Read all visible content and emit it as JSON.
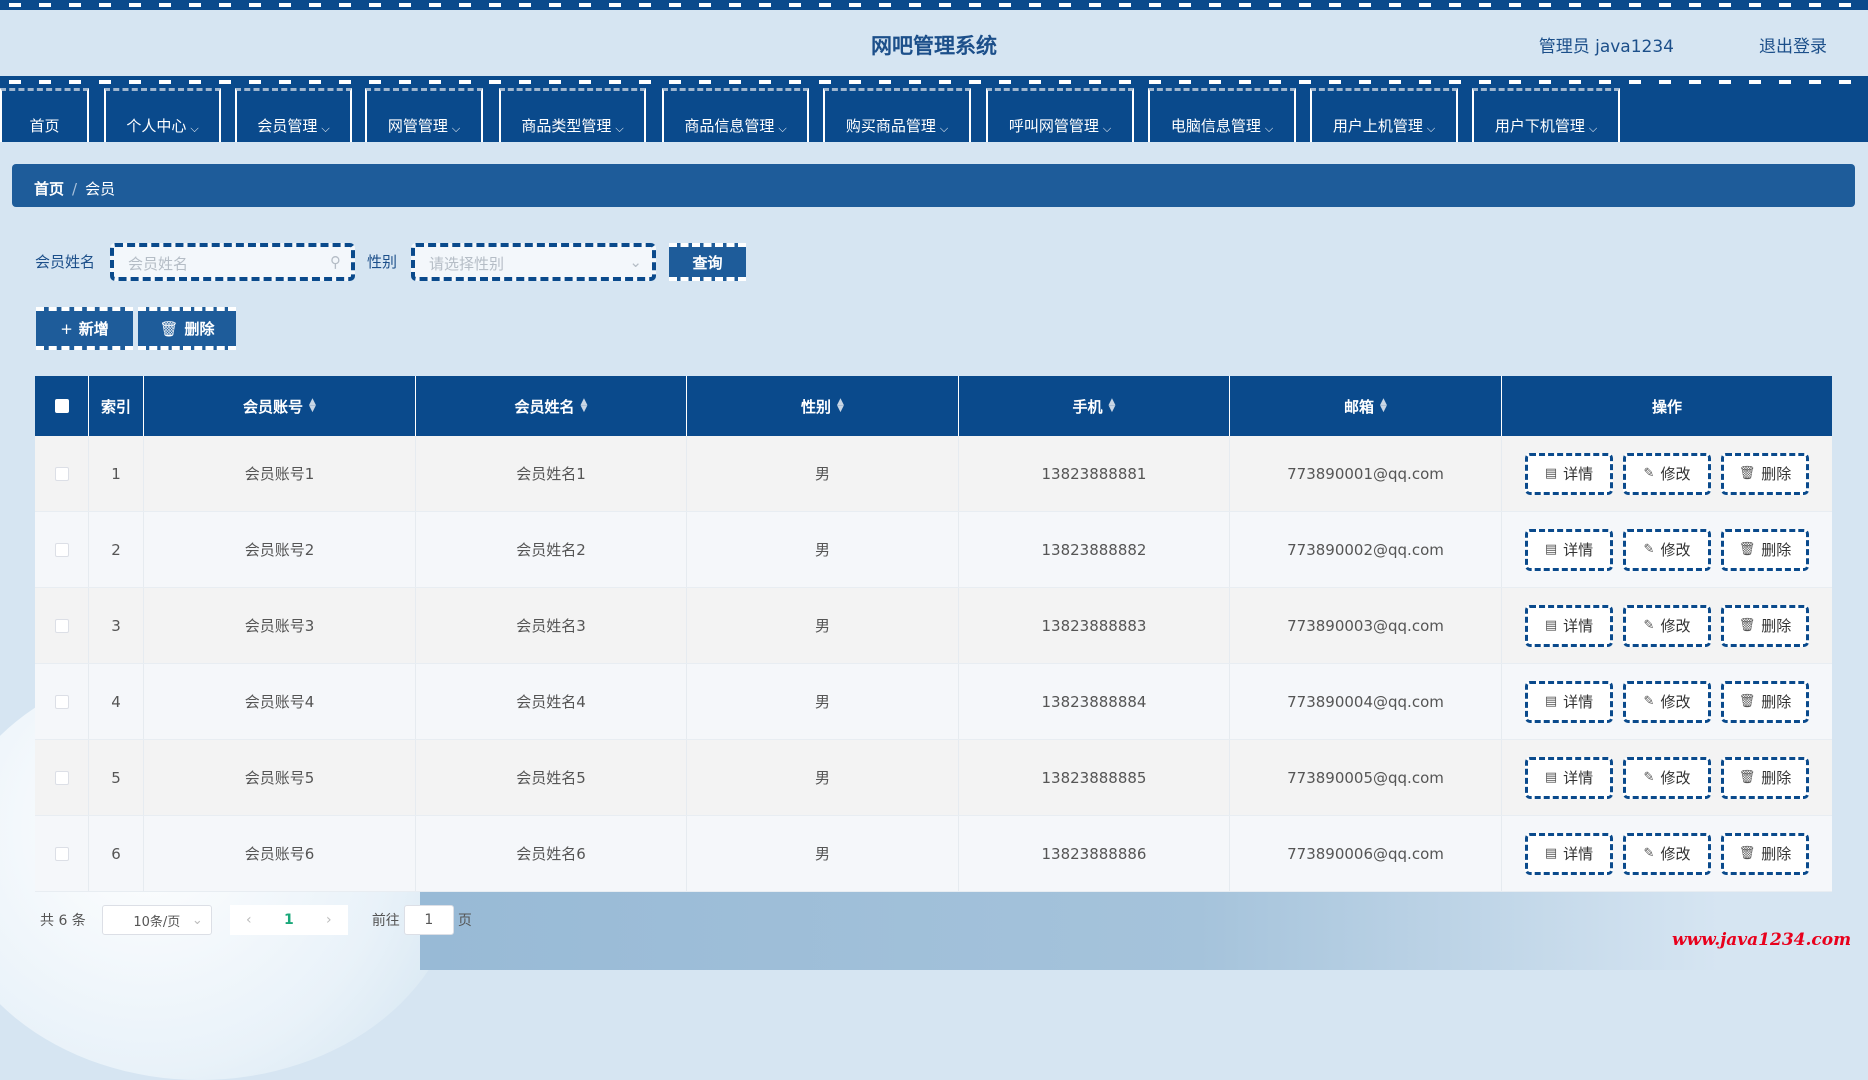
{
  "header": {
    "title": "网吧管理系统",
    "user": "管理员 java1234",
    "logout": "退出登录"
  },
  "nav": [
    {
      "label": "首页",
      "dropdown": false
    },
    {
      "label": "个人中心",
      "dropdown": true
    },
    {
      "label": "会员管理",
      "dropdown": true
    },
    {
      "label": "网管管理",
      "dropdown": true
    },
    {
      "label": "商品类型管理",
      "dropdown": true
    },
    {
      "label": "商品信息管理",
      "dropdown": true
    },
    {
      "label": "购买商品管理",
      "dropdown": true
    },
    {
      "label": "呼叫网管管理",
      "dropdown": true
    },
    {
      "label": "电脑信息管理",
      "dropdown": true
    },
    {
      "label": "用户上机管理",
      "dropdown": true
    },
    {
      "label": "用户下机管理",
      "dropdown": true
    }
  ],
  "breadcrumb": {
    "home": "首页",
    "sep": "/",
    "current": "会员"
  },
  "search": {
    "name_label": "会员姓名",
    "name_placeholder": "会员姓名",
    "gender_label": "性别",
    "gender_placeholder": "请选择性别",
    "query": "查询"
  },
  "actions": {
    "add": "新增",
    "delete": "删除"
  },
  "table": {
    "headers": {
      "index": "索引",
      "account": "会员账号",
      "name": "会员姓名",
      "gender": "性别",
      "phone": "手机",
      "email": "邮箱",
      "ops": "操作"
    },
    "op_labels": {
      "detail": "详情",
      "edit": "修改",
      "delete": "删除"
    },
    "rows": [
      {
        "index": "1",
        "account": "会员账号1",
        "name": "会员姓名1",
        "gender": "男",
        "phone": "13823888881",
        "email": "773890001@qq.com"
      },
      {
        "index": "2",
        "account": "会员账号2",
        "name": "会员姓名2",
        "gender": "男",
        "phone": "13823888882",
        "email": "773890002@qq.com"
      },
      {
        "index": "3",
        "account": "会员账号3",
        "name": "会员姓名3",
        "gender": "男",
        "phone": "13823888883",
        "email": "773890003@qq.com"
      },
      {
        "index": "4",
        "account": "会员账号4",
        "name": "会员姓名4",
        "gender": "男",
        "phone": "13823888884",
        "email": "773890004@qq.com"
      },
      {
        "index": "5",
        "account": "会员账号5",
        "name": "会员姓名5",
        "gender": "男",
        "phone": "13823888885",
        "email": "773890005@qq.com"
      },
      {
        "index": "6",
        "account": "会员账号6",
        "name": "会员姓名6",
        "gender": "男",
        "phone": "13823888886",
        "email": "773890006@qq.com"
      }
    ]
  },
  "pagination": {
    "total": "共 6 条",
    "page_size": "10条/页",
    "current_page": "1",
    "goto_label": "前往",
    "goto_value": "1",
    "page_suffix": "页"
  },
  "watermark": "www.java1234.com",
  "colors": {
    "primary": "#0a4a8c",
    "breadcrumb": "#1e5c9a",
    "background": "#d6e5f2",
    "watermark": "#e8001c"
  }
}
